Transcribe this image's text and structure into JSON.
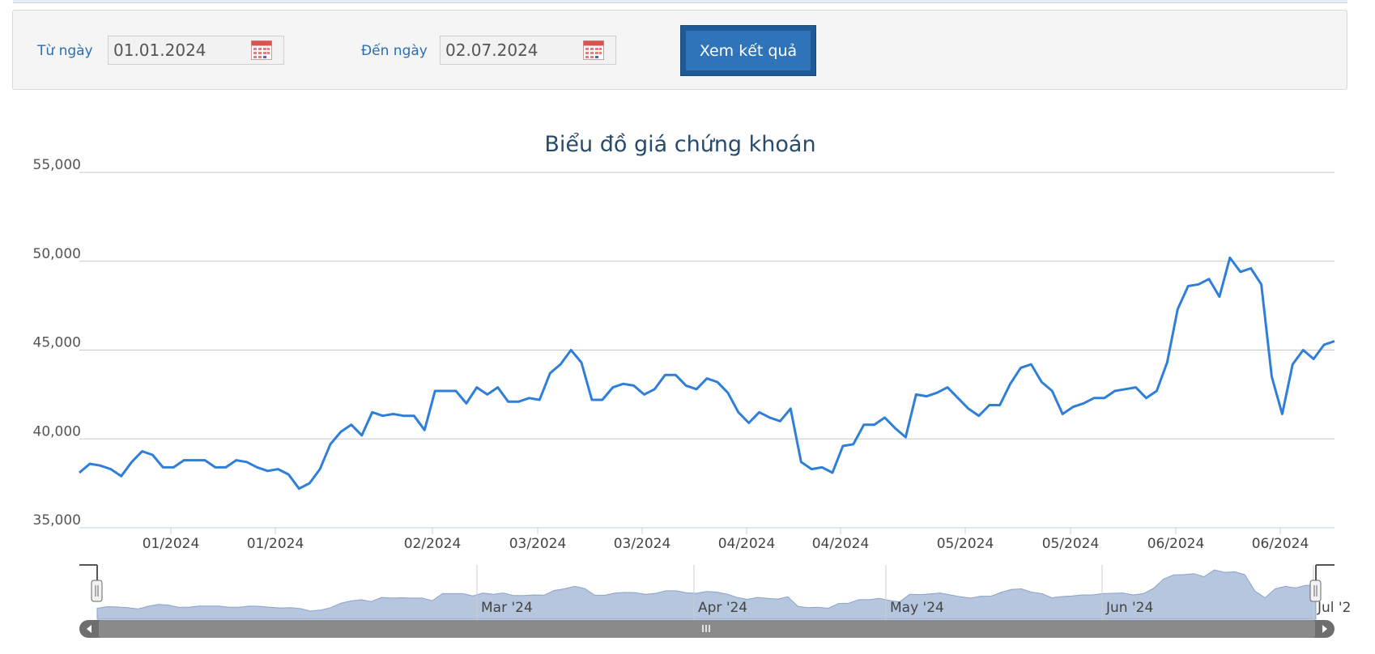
{
  "filter": {
    "from_label": "Từ ngày",
    "from_value": "01.01.2024",
    "to_label": "Đến ngày",
    "to_value": "02.07.2024",
    "submit_label": "Xem kết quả"
  },
  "chart_data": {
    "type": "line",
    "title": "Biểu đồ giá chứng khoán",
    "xlabel": "",
    "ylabel": "",
    "ylim": [
      35000,
      55000
    ],
    "yticks": [
      35000,
      40000,
      45000,
      50000,
      55000
    ],
    "ytick_labels": [
      "35,000",
      "40,000",
      "45,000",
      "50,000",
      "55,000"
    ],
    "xtick_labels": [
      "01/2024",
      "01/2024",
      "02/2024",
      "03/2024",
      "03/2024",
      "04/2024",
      "04/2024",
      "05/2024",
      "05/2024",
      "06/2024",
      "06/2024"
    ],
    "navigator_labels": [
      "Mar '24",
      "Apr '24",
      "May '24",
      "Jun '24",
      "Jul '2"
    ],
    "grid": true,
    "legend": "none",
    "series": [
      {
        "color": "#2f7ed8",
        "values": [
          38100,
          38600,
          38500,
          38300,
          37900,
          38700,
          39300,
          39100,
          38400,
          38400,
          38800,
          38800,
          38800,
          38400,
          38400,
          38800,
          38700,
          38400,
          38200,
          38300,
          38000,
          37200,
          37500,
          38300,
          39700,
          40400,
          40800,
          40200,
          41500,
          41300,
          41400,
          41300,
          41300,
          40500,
          42700,
          42700,
          42700,
          42000,
          42900,
          42500,
          42900,
          42100,
          42100,
          42300,
          42200,
          43700,
          44200,
          45000,
          44300,
          42200,
          42200,
          42900,
          43100,
          43000,
          42500,
          42800,
          43600,
          43600,
          43000,
          42800,
          43400,
          43200,
          42600,
          41500,
          40900,
          41500,
          41200,
          41000,
          41700,
          38700,
          38300,
          38400,
          38100,
          39600,
          39700,
          40800,
          40800,
          41200,
          40600,
          40100,
          42500,
          42400,
          42600,
          42900,
          42300,
          41700,
          41300,
          41900,
          41900,
          43100,
          44000,
          44200,
          43200,
          42700,
          41400,
          41800,
          42000,
          42300,
          42300,
          42700,
          42800,
          42900,
          42300,
          42700,
          44300,
          47300,
          48600,
          48700,
          49000,
          48000,
          50200,
          49400,
          49600,
          48700,
          43500,
          41400,
          44200,
          45000,
          44500,
          45300,
          45500
        ]
      }
    ]
  },
  "navigator": {
    "scroll_left_icon": "arrow-left-icon",
    "scroll_right_icon": "arrow-right-icon",
    "grip_icon": "grip-icon"
  }
}
